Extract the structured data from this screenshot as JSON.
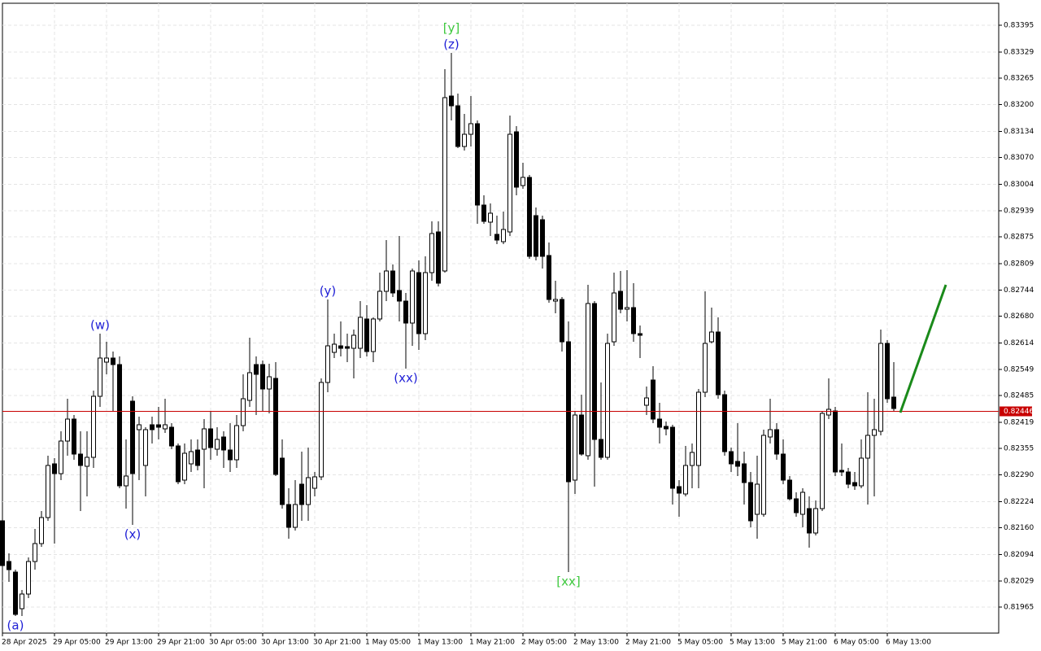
{
  "chart_data": {
    "type": "candlestick",
    "categories": [
      "28 Apr 2025",
      null,
      null,
      null,
      null,
      null,
      null,
      null,
      "29 Apr 05:00",
      null,
      null,
      null,
      null,
      null,
      null,
      null,
      "29 Apr 13:00",
      null,
      null,
      null,
      null,
      null,
      null,
      null,
      "29 Apr 21:00",
      null,
      null,
      null,
      null,
      null,
      null,
      null,
      "30 Apr 05:00",
      null,
      null,
      null,
      null,
      null,
      null,
      null,
      "30 Apr 13:00",
      null,
      null,
      null,
      null,
      null,
      null,
      null,
      "30 Apr 21:00",
      null,
      null,
      null,
      null,
      null,
      null,
      null,
      "1 May 05:00",
      null,
      null,
      null,
      null,
      null,
      null,
      null,
      "1 May 13:00",
      null,
      null,
      null,
      null,
      null,
      null,
      null,
      "1 May 21:00",
      null,
      null,
      null,
      null,
      null,
      null,
      null,
      "2 May 05:00",
      null,
      null,
      null,
      null,
      null,
      null,
      null,
      "2 May 13:00",
      null,
      null,
      null,
      null,
      null,
      null,
      null,
      "2 May 21:00",
      null,
      null,
      null,
      null,
      null,
      null,
      null,
      "5 May 05:00",
      null,
      null,
      null,
      null,
      null,
      null,
      null,
      "5 May 13:00",
      null,
      null,
      null,
      null,
      null,
      null,
      null,
      "5 May 21:00",
      null,
      null,
      null,
      null,
      null,
      null,
      null,
      "6 May 05:00",
      null,
      null,
      null,
      null,
      null,
      null,
      null,
      "6 May 13:00",
      null
    ],
    "open": [
      0.82177,
      0.82077,
      0.82051,
      0.81961,
      0.81997,
      0.82077,
      0.82121,
      0.82185,
      0.82317,
      0.82293,
      0.82373,
      0.82427,
      0.82341,
      0.82311,
      0.82333,
      0.82483,
      0.82567,
      0.82577,
      0.82561,
      0.82263,
      0.82471,
      0.82401,
      0.82313,
      0.82413,
      0.82413,
      0.82403,
      0.82407,
      0.82361,
      0.82277,
      0.82317,
      0.82351,
      0.82353,
      0.82403,
      0.82353,
      0.82383,
      0.82351,
      0.82327,
      0.82411,
      0.82473,
      0.82561,
      0.82561,
      0.82501,
      0.82527,
      0.82331,
      0.82217,
      0.82161,
      0.82267,
      0.82217,
      0.82257,
      0.82285,
      0.82517,
      0.82591,
      0.82607,
      0.82605,
      0.82601,
      0.82601,
      0.82673,
      0.82593,
      0.82673,
      0.82741,
      0.82791,
      0.82743,
      0.82717,
      0.82663,
      0.82787,
      0.82637,
      0.82787,
      0.82887,
      0.82791,
      0.83221,
      0.83197,
      0.83097,
      0.83127,
      0.83153,
      0.82953,
      0.82911,
      0.82881,
      0.82863,
      0.82887,
      0.83133,
      0.83001,
      0.83021,
      0.82927,
      0.82917,
      0.82829,
      0.82717,
      0.82721,
      0.82617,
      0.82277,
      0.82437,
      0.82337,
      0.82711,
      0.82377,
      0.82333,
      0.82617,
      0.82741,
      0.82697,
      0.82701,
      0.82637,
      0.82461,
      0.82523,
      0.82427,
      0.82409,
      0.82407,
      0.82261,
      0.82243,
      0.82313,
      0.82313,
      0.82493,
      0.82617,
      0.82641,
      0.82487,
      0.82347,
      0.82323,
      0.82317,
      0.82271,
      0.82193,
      0.82193,
      0.82383,
      0.82401,
      0.82341,
      0.82277,
      0.82231,
      0.82193,
      0.82207,
      0.82147,
      0.82207,
      0.82437,
      0.82447,
      0.82301,
      0.82297,
      0.82271,
      0.82263,
      0.82331,
      0.82387,
      0.82397,
      0.82613,
      0.82481
    ],
    "high": [
      0.82181,
      0.82097,
      0.82057,
      0.82007,
      0.82087,
      0.82157,
      0.82201,
      0.82337,
      0.82331,
      0.82397,
      0.82477,
      0.82437,
      0.82397,
      0.82397,
      0.82497,
      0.82637,
      0.82617,
      0.82593,
      0.82581,
      0.82377,
      0.82483,
      0.82433,
      0.82407,
      0.82433,
      0.82457,
      0.82477,
      0.82417,
      0.82367,
      0.82367,
      0.82377,
      0.82377,
      0.82427,
      0.82447,
      0.82407,
      0.82397,
      0.82417,
      0.82437,
      0.82537,
      0.82627,
      0.82581,
      0.82571,
      0.82563,
      0.82567,
      0.82377,
      0.82257,
      0.82277,
      0.82347,
      0.82357,
      0.82297,
      0.82527,
      0.82721,
      0.82637,
      0.82667,
      0.82637,
      0.82647,
      0.82717,
      0.82707,
      0.82677,
      0.82787,
      0.82867,
      0.82807,
      0.82877,
      0.82737,
      0.82797,
      0.82817,
      0.82827,
      0.82913,
      0.82913,
      0.83287,
      0.83327,
      0.83227,
      0.83177,
      0.83221,
      0.83161,
      0.82977,
      0.82957,
      0.82927,
      0.82937,
      0.83173,
      0.83147,
      0.83057,
      0.83027,
      0.82947,
      0.82927,
      0.82861,
      0.82767,
      0.82727,
      0.82667,
      0.82447,
      0.82487,
      0.82757,
      0.82717,
      0.82517,
      0.82637,
      0.82787,
      0.82791,
      0.82793,
      0.82761,
      0.82657,
      0.82507,
      0.82557,
      0.82467,
      0.82421,
      0.82413,
      0.82277,
      0.82361,
      0.82367,
      0.82501,
      0.82741,
      0.82701,
      0.82677,
      0.82497,
      0.82357,
      0.82417,
      0.82347,
      0.82297,
      0.82337,
      0.82401,
      0.82477,
      0.82417,
      0.82377,
      0.82287,
      0.82247,
      0.82257,
      0.82237,
      0.82227,
      0.82447,
      0.82527,
      0.82457,
      0.82367,
      0.82307,
      0.82297,
      0.82377,
      0.82493,
      0.82477,
      0.82647,
      0.82621,
      0.82567
    ],
    "low": [
      0.82057,
      0.82027,
      0.81943,
      0.81943,
      0.81987,
      0.82057,
      0.82113,
      0.82177,
      0.82121,
      0.82277,
      0.82337,
      0.82327,
      0.82201,
      0.82237,
      0.82307,
      0.82457,
      0.82537,
      0.82447,
      0.82257,
      0.82207,
      0.82167,
      0.82277,
      0.82237,
      0.82367,
      0.82377,
      0.82393,
      0.82353,
      0.82267,
      0.82267,
      0.82297,
      0.82301,
      0.82257,
      0.82327,
      0.82337,
      0.82307,
      0.82297,
      0.82307,
      0.82397,
      0.82457,
      0.82437,
      0.82447,
      0.82441,
      0.82287,
      0.82207,
      0.82133,
      0.82153,
      0.82177,
      0.82177,
      0.82237,
      0.82277,
      0.82493,
      0.82577,
      0.82581,
      0.82567,
      0.82527,
      0.82577,
      0.82581,
      0.82567,
      0.82667,
      0.82717,
      0.82727,
      0.82667,
      0.82551,
      0.82607,
      0.82597,
      0.82621,
      0.82767,
      0.82753,
      0.82787,
      0.83161,
      0.83093,
      0.83087,
      0.83097,
      0.82907,
      0.82907,
      0.82877,
      0.82857,
      0.82857,
      0.82877,
      0.82977,
      0.82993,
      0.82821,
      0.82817,
      0.82797,
      0.82713,
      0.82687,
      0.82593,
      0.82051,
      0.82243,
      0.82337,
      0.82327,
      0.82261,
      0.82327,
      0.82327,
      0.82607,
      0.82687,
      0.82667,
      0.82617,
      0.82577,
      0.82437,
      0.82417,
      0.82367,
      0.82387,
      0.82217,
      0.82187,
      0.82237,
      0.82257,
      0.82257,
      0.82481,
      0.82613,
      0.82477,
      0.82337,
      0.82297,
      0.82287,
      0.82217,
      0.82161,
      0.82133,
      0.82187,
      0.82367,
      0.82327,
      0.82267,
      0.82227,
      0.82187,
      0.82161,
      0.82111,
      0.82141,
      0.82201,
      0.82427,
      0.82287,
      0.82287,
      0.82257,
      0.82253,
      0.82257,
      0.82217,
      0.82237,
      0.82387,
      0.82467,
      0.82447
    ],
    "close": [
      0.82067,
      0.82057,
      0.81947,
      0.81997,
      0.82077,
      0.82121,
      0.82185,
      0.82313,
      0.82293,
      0.82373,
      0.82427,
      0.82341,
      0.82313,
      0.82333,
      0.82483,
      0.82577,
      0.82577,
      0.82561,
      0.82263,
      0.82287,
      0.82293,
      0.82413,
      0.82401,
      0.82401,
      0.82407,
      0.82413,
      0.82361,
      0.82273,
      0.82343,
      0.82347,
      0.82313,
      0.82403,
      0.82357,
      0.82377,
      0.82351,
      0.82327,
      0.82411,
      0.82477,
      0.82541,
      0.82537,
      0.82501,
      0.82531,
      0.82291,
      0.82217,
      0.82161,
      0.82217,
      0.82217,
      0.82283,
      0.82285,
      0.82517,
      0.82607,
      0.82611,
      0.82601,
      0.82601,
      0.82633,
      0.82677,
      0.82593,
      0.82673,
      0.82741,
      0.82791,
      0.82737,
      0.82717,
      0.82663,
      0.82791,
      0.82637,
      0.82787,
      0.82883,
      0.82761,
      0.83217,
      0.83197,
      0.83097,
      0.83127,
      0.83153,
      0.82953,
      0.82913,
      0.82933,
      0.82867,
      0.82893,
      0.83127,
      0.82997,
      0.83021,
      0.82827,
      0.82827,
      0.82827,
      0.82721,
      0.82721,
      0.82617,
      0.82273,
      0.82437,
      0.82341,
      0.82711,
      0.82377,
      0.82333,
      0.82613,
      0.82737,
      0.82697,
      0.82701,
      0.82637,
      0.82633,
      0.82479,
      0.82427,
      0.82407,
      0.82403,
      0.82257,
      0.82245,
      0.82313,
      0.82345,
      0.82493,
      0.82613,
      0.82641,
      0.82487,
      0.82347,
      0.82317,
      0.82311,
      0.82271,
      0.82177,
      0.82267,
      0.82387,
      0.82401,
      0.82341,
      0.82277,
      0.82231,
      0.82197,
      0.82247,
      0.82147,
      0.82207,
      0.82441,
      0.82451,
      0.82297,
      0.82297,
      0.82267,
      0.82263,
      0.82331,
      0.82387,
      0.82401,
      0.82613,
      0.82477,
      0.82453
    ],
    "ylim": [
      0.81901,
      0.83449
    ],
    "yticks": [
      0.83395,
      0.83329,
      0.83265,
      {
        "value": 0.832,
        "label": "0.83200"
      },
      0.83134,
      {
        "value": 0.8307,
        "label": "0.83070"
      },
      0.83004,
      0.82939,
      0.82875,
      0.82809,
      0.82744,
      {
        "value": 0.8268,
        "label": "0.82680"
      },
      0.82614,
      0.82549,
      0.82485,
      0.82419,
      0.82355,
      {
        "value": 0.8229,
        "label": "0.82290"
      },
      0.82224,
      {
        "value": 0.8216,
        "label": "0.82160"
      },
      0.82094,
      0.82029,
      0.81965
    ],
    "grid": true,
    "up_color": "#ffffff",
    "down_color": "#000000",
    "current_price": {
      "value": 0.82446,
      "color": "#c80000"
    },
    "forecast": {
      "values": [
        0.82443,
        0.82757
      ],
      "color": "#1a8a1a"
    },
    "annotations": [
      {
        "text": "(a)",
        "color": "#1f1fd6",
        "index": 2,
        "anchor": "low"
      },
      {
        "text": "(w)",
        "color": "#1f1fd6",
        "index": 15,
        "anchor": "high"
      },
      {
        "text": "(x)",
        "color": "#1f1fd6",
        "index": 20,
        "anchor": "low"
      },
      {
        "text": "(y)",
        "color": "#1f1fd6",
        "index": 50,
        "anchor": "high"
      },
      {
        "text": "(xx)",
        "color": "#1f1fd6",
        "index": 62,
        "anchor": "low"
      },
      {
        "text": "(z)",
        "color": "#1f1fd6",
        "index": 69,
        "anchor": "high"
      },
      {
        "text": "[y]",
        "color": "#3cc83c",
        "index": 69,
        "anchor": "high"
      },
      {
        "text": "[xx]",
        "color": "#3cc83c",
        "index": 87,
        "anchor": "low"
      }
    ]
  }
}
